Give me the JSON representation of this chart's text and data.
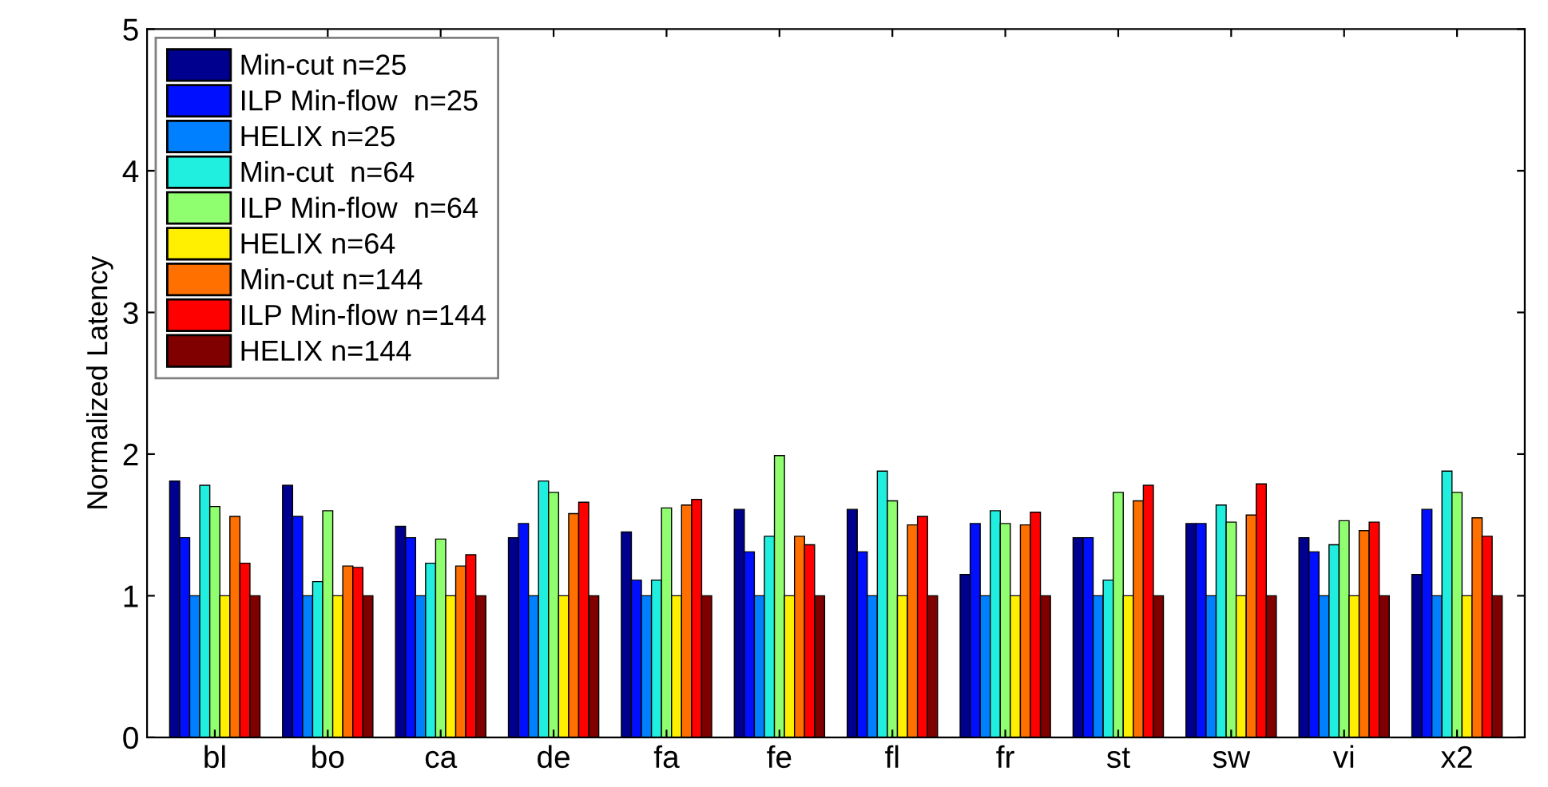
{
  "chart_data": {
    "type": "bar",
    "ylabel": "Normalized Latency",
    "categories": [
      "bl",
      "bo",
      "ca",
      "de",
      "fa",
      "fe",
      "fl",
      "fr",
      "st",
      "sw",
      "vi",
      "x2"
    ],
    "ylim": [
      0,
      5
    ],
    "yticks": [
      0,
      1,
      2,
      3,
      4,
      5
    ],
    "grid": false,
    "legend": "top left",
    "series": [
      {
        "name": "Min-cut n=25",
        "color": "#00008f",
        "values": [
          1.81,
          1.78,
          1.49,
          1.41,
          1.45,
          1.61,
          1.61,
          1.15,
          1.41,
          1.51,
          1.41,
          1.15
        ]
      },
      {
        "name": "ILP Min-flow  n=25",
        "color": "#0010ff",
        "values": [
          1.41,
          1.56,
          1.41,
          1.51,
          1.11,
          1.31,
          1.31,
          1.51,
          1.41,
          1.51,
          1.31,
          1.61
        ]
      },
      {
        "name": "HELIX n=25",
        "color": "#0080ff",
        "values": [
          1.0,
          1.0,
          1.0,
          1.0,
          1.0,
          1.0,
          1.0,
          1.0,
          1.0,
          1.0,
          1.0,
          1.0
        ]
      },
      {
        "name": "Min-cut  n=64",
        "color": "#20efdf",
        "values": [
          1.78,
          1.1,
          1.23,
          1.81,
          1.11,
          1.42,
          1.88,
          1.6,
          1.11,
          1.64,
          1.36,
          1.88
        ]
      },
      {
        "name": "ILP Min-flow  n=64",
        "color": "#8fff70",
        "values": [
          1.63,
          1.6,
          1.4,
          1.73,
          1.62,
          1.99,
          1.67,
          1.51,
          1.73,
          1.52,
          1.53,
          1.73
        ]
      },
      {
        "name": "HELIX n=64",
        "color": "#ffef00",
        "values": [
          1.0,
          1.0,
          1.0,
          1.0,
          1.0,
          1.0,
          1.0,
          1.0,
          1.0,
          1.0,
          1.0,
          1.0
        ]
      },
      {
        "name": "Min-cut n=144",
        "color": "#ff7000",
        "values": [
          1.56,
          1.21,
          1.21,
          1.58,
          1.64,
          1.42,
          1.5,
          1.5,
          1.67,
          1.57,
          1.46,
          1.55
        ]
      },
      {
        "name": "ILP Min-flow n=144",
        "color": "#ff0000",
        "values": [
          1.23,
          1.2,
          1.29,
          1.66,
          1.68,
          1.36,
          1.56,
          1.59,
          1.78,
          1.79,
          1.52,
          1.42
        ]
      },
      {
        "name": "HELIX n=144",
        "color": "#800000",
        "values": [
          1.0,
          1.0,
          1.0,
          1.0,
          1.0,
          1.0,
          1.0,
          1.0,
          1.0,
          1.0,
          1.0,
          1.0
        ]
      }
    ]
  }
}
